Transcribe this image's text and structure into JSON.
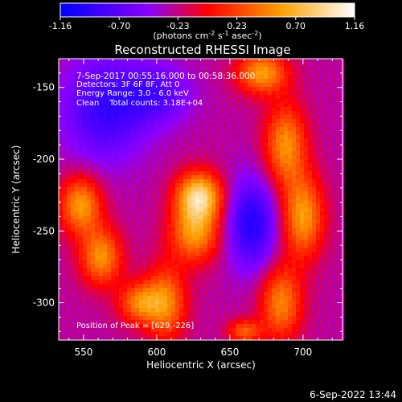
{
  "chart_data": {
    "type": "heatmap",
    "title": "Reconstructed RHESSI Image",
    "xlabel": "Heliocentric X (arcsec)",
    "ylabel": "Heliocentric Y (arcsec)",
    "xlim": [
      533,
      727
    ],
    "ylim": [
      -326,
      -130
    ],
    "xticks": [
      550,
      600,
      650,
      700
    ],
    "yticks": [
      -150,
      -200,
      -250,
      -300
    ],
    "colorbar": {
      "ticks": [
        "-1.16",
        "-0.70",
        "-0.23",
        "0.23",
        "0.70",
        "1.16"
      ],
      "range": [
        -1.16,
        1.16
      ],
      "unit_label": "(photons cm-2 s-1 asec-2)",
      "colormap": [
        "#0000ff",
        "#8a00ff",
        "#ff0000",
        "#ffa000",
        "#ffffff"
      ]
    },
    "annotations": {
      "time": "7-Sep-2017 00:55:16.000 to 00:58:36.000",
      "detectors": "Detectors: 3F 6F 8F, Att 0",
      "energy": "Energy Range: 3.0 - 6.0 keV",
      "clean": "Clean    Total counts: 3.18E+04",
      "peak": "Position of Peak = [629,-226]"
    },
    "peak": [
      629,
      -226
    ],
    "sources": [
      {
        "x": 629,
        "y": -226,
        "amp": 1.16,
        "sx": 11,
        "sy": 12
      },
      {
        "x": 626,
        "y": -252,
        "amp": 0.8,
        "sx": 12,
        "sy": 14
      },
      {
        "x": 606,
        "y": -300,
        "amp": 0.75,
        "sx": 10,
        "sy": 18
      },
      {
        "x": 548,
        "y": -232,
        "amp": 0.85,
        "sx": 10,
        "sy": 14
      },
      {
        "x": 562,
        "y": -268,
        "amp": 0.8,
        "sx": 10,
        "sy": 14
      },
      {
        "x": 588,
        "y": -300,
        "amp": 0.7,
        "sx": 10,
        "sy": 10
      },
      {
        "x": 672,
        "y": -140,
        "amp": 0.85,
        "sx": 12,
        "sy": 10
      },
      {
        "x": 688,
        "y": -190,
        "amp": 0.8,
        "sx": 10,
        "sy": 20
      },
      {
        "x": 700,
        "y": -240,
        "amp": 0.85,
        "sx": 10,
        "sy": 20
      },
      {
        "x": 685,
        "y": -300,
        "amp": 0.75,
        "sx": 10,
        "sy": 18
      },
      {
        "x": 660,
        "y": -320,
        "amp": 0.6,
        "sx": 8,
        "sy": 6
      },
      {
        "x": 565,
        "y": -165,
        "amp": -0.6,
        "sx": 20,
        "sy": 25
      },
      {
        "x": 665,
        "y": -245,
        "amp": -0.7,
        "sx": 12,
        "sy": 22
      },
      {
        "x": 600,
        "y": -155,
        "amp": -0.45,
        "sx": 16,
        "sy": 14
      }
    ]
  },
  "footer": {
    "timestamp": "6-Sep-2022 13:44"
  }
}
